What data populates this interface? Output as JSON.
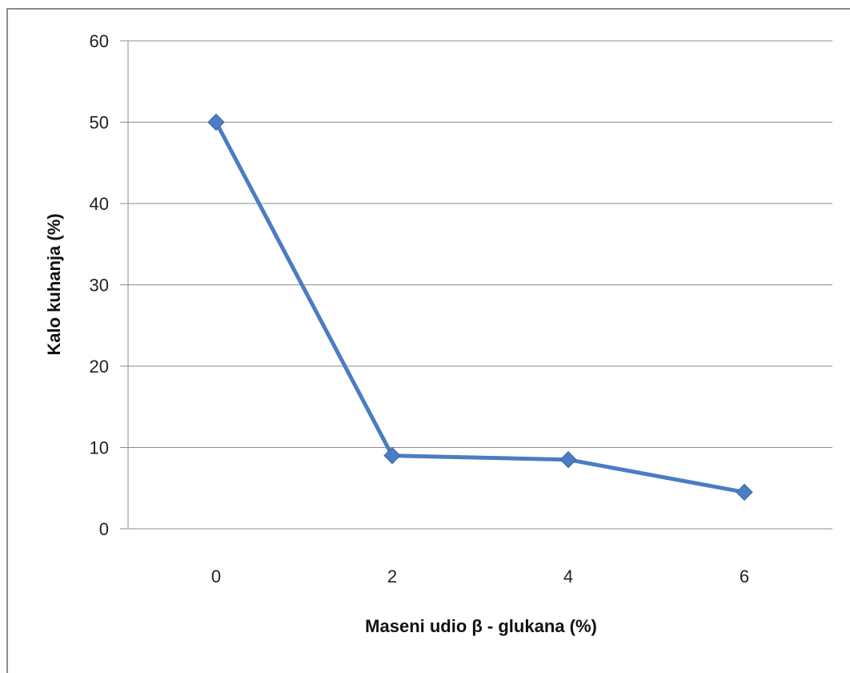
{
  "chart_data": {
    "type": "line",
    "title": "",
    "xlabel": "Maseni udio β - glukana (%)",
    "ylabel": "Kalo kuhanja (%)",
    "categories": [
      "0",
      "2",
      "4",
      "6"
    ],
    "series": [
      {
        "values": [
          50,
          9,
          8.5,
          4.5
        ]
      }
    ],
    "ylim": [
      0,
      60
    ],
    "yticks": [
      "0",
      "10",
      "20",
      "30",
      "40",
      "50",
      "60"
    ],
    "grid": "horizontal",
    "legend": "none",
    "colors": {
      "series": "#4a7dc2",
      "grid": "#8c8c8c",
      "axis": "#8c8c8c"
    }
  }
}
